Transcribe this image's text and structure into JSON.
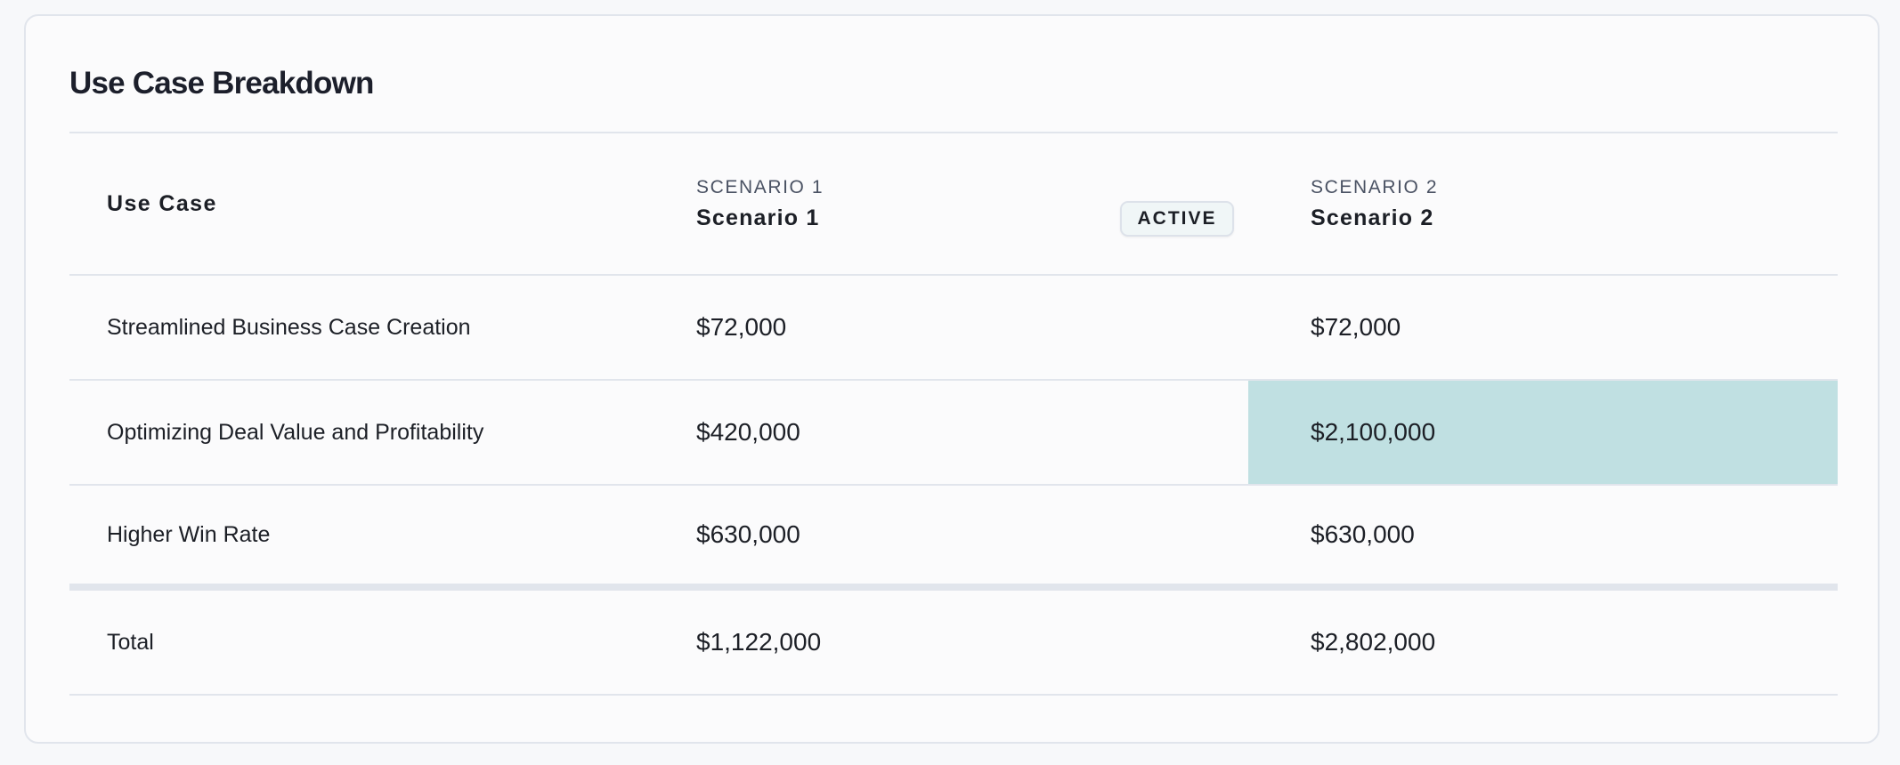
{
  "card": {
    "title": "Use Case Breakdown"
  },
  "table": {
    "header": {
      "use_case": "Use Case",
      "scenario1": {
        "label": "SCENARIO 1",
        "name": "Scenario 1"
      },
      "active_badge": "ACTIVE",
      "scenario2": {
        "label": "SCENARIO 2",
        "name": "Scenario 2"
      }
    },
    "rows": [
      {
        "use_case": "Streamlined Business Case Creation",
        "scenario1": "$72,000",
        "scenario2": "$72,000"
      },
      {
        "use_case": "Optimizing Deal Value and Profitability",
        "scenario1": "$420,000",
        "scenario2": "$2,100,000",
        "highlight": "scenario2"
      },
      {
        "use_case": "Higher Win Rate",
        "scenario1": "$630,000",
        "scenario2": "$630,000"
      }
    ],
    "total": {
      "label": "Total",
      "scenario1": "$1,122,000",
      "scenario2": "$2,802,000"
    }
  },
  "colors": {
    "highlight": "#c0e0e2",
    "border": "#e1e5ec",
    "badge_bg": "#f0f6f7"
  }
}
